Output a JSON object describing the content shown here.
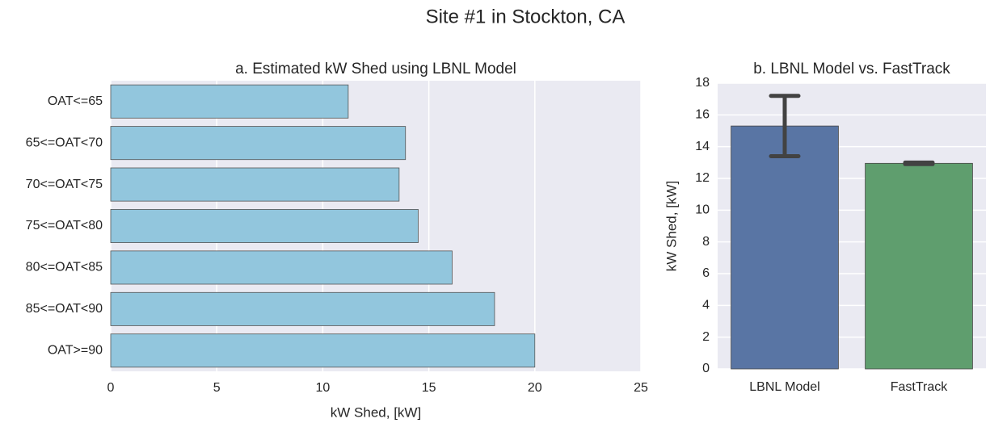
{
  "title": "Site #1 in Stockton, CA",
  "chart_data": [
    {
      "type": "bar",
      "orientation": "horizontal",
      "title": "a. Estimated kW Shed using LBNL Model",
      "categories": [
        "OAT<=65",
        "65<=OAT<70",
        "70<=OAT<75",
        "75<=OAT<80",
        "80<=OAT<85",
        "85<=OAT<90",
        "OAT>=90"
      ],
      "values": [
        11.2,
        13.9,
        13.6,
        14.5,
        16.1,
        18.1,
        20.0
      ],
      "color": "#92c6dd",
      "x_label": "kW Shed, [kW]",
      "xlim": [
        0,
        25
      ],
      "xticks": [
        0,
        5,
        10,
        15,
        20,
        25
      ],
      "grid": true
    },
    {
      "type": "bar",
      "orientation": "vertical",
      "title": "b. LBNL Model vs. FastTrack",
      "categories": [
        "LBNL Model",
        "FastTrack"
      ],
      "values": [
        15.3,
        12.95
      ],
      "errors": [
        1.9,
        0.05
      ],
      "colors": [
        "#5975a4",
        "#5f9e6e"
      ],
      "y_label": "kW Shed, [kW]",
      "ylim": [
        0,
        18
      ],
      "yticks": [
        0,
        2,
        4,
        6,
        8,
        10,
        12,
        14,
        16,
        18
      ],
      "grid": true
    }
  ]
}
